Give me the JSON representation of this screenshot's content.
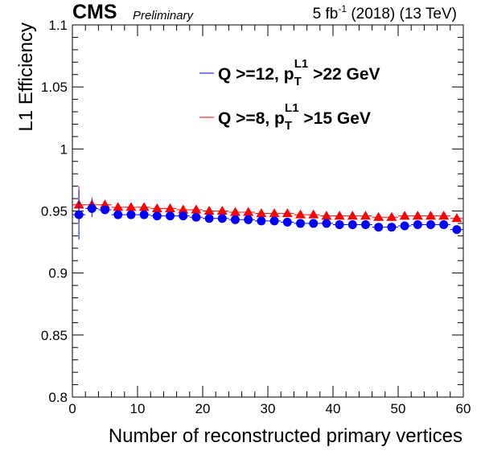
{
  "header": {
    "experiment": "CMS",
    "status": "Preliminary",
    "lumi": "5 fb",
    "lumi_exp": "-1",
    "energy": " (2018) (13 TeV)"
  },
  "chart_data": {
    "type": "scatter",
    "xlabel": "Number of reconstructed primary vertices",
    "ylabel": "L1 Efficiency",
    "xlim": [
      0,
      60
    ],
    "ylim": [
      0.8,
      1.1
    ],
    "xticks": [
      0,
      10,
      20,
      30,
      40,
      50,
      60
    ],
    "yticks": [
      0.8,
      0.85,
      0.9,
      0.95,
      1,
      1.05,
      1.1
    ],
    "ytick_labels": [
      "0.8",
      "0.85",
      "0.9",
      "0.95",
      "1",
      "1.05",
      "1.1"
    ],
    "grid": false,
    "legend_position": "top-right",
    "series": [
      {
        "legend_parts": [
          "Q >=12, p",
          "T",
          "L1",
          " >22 GeV"
        ],
        "color": "#0000ff",
        "marker": "circle",
        "x": [
          1,
          3,
          5,
          7,
          9,
          11,
          13,
          15,
          17,
          19,
          21,
          23,
          25,
          27,
          29,
          31,
          33,
          35,
          37,
          39,
          41,
          43,
          45,
          47,
          49,
          51,
          53,
          55,
          57,
          59
        ],
        "y": [
          0.947,
          0.952,
          0.951,
          0.947,
          0.947,
          0.947,
          0.946,
          0.946,
          0.946,
          0.945,
          0.944,
          0.944,
          0.943,
          0.943,
          0.942,
          0.942,
          0.941,
          0.94,
          0.94,
          0.94,
          0.939,
          0.939,
          0.939,
          0.937,
          0.937,
          0.938,
          0.939,
          0.939,
          0.939,
          0.935
        ],
        "yerr": [
          0.02,
          0.007,
          0.003,
          0.002,
          0.001,
          0.001,
          0.001,
          0.001,
          0.001,
          0.001,
          0.001,
          0.001,
          0.001,
          0.001,
          0.001,
          0.001,
          0.001,
          0.001,
          0.001,
          0.001,
          0.001,
          0.001,
          0.002,
          0.002,
          0.002,
          0.002,
          0.002,
          0.003,
          0.003,
          0.003
        ]
      },
      {
        "legend_parts": [
          "Q >=8, p",
          "T",
          "L1",
          " >15 GeV"
        ],
        "color": "#ff0000",
        "marker": "triangle",
        "x": [
          1,
          3,
          5,
          7,
          9,
          11,
          13,
          15,
          17,
          19,
          21,
          23,
          25,
          27,
          29,
          31,
          33,
          35,
          37,
          39,
          41,
          43,
          45,
          47,
          49,
          51,
          53,
          55,
          57,
          59
        ],
        "y": [
          0.955,
          0.955,
          0.955,
          0.953,
          0.953,
          0.953,
          0.952,
          0.952,
          0.951,
          0.951,
          0.95,
          0.95,
          0.949,
          0.949,
          0.948,
          0.948,
          0.948,
          0.947,
          0.947,
          0.946,
          0.946,
          0.946,
          0.946,
          0.945,
          0.945,
          0.946,
          0.946,
          0.946,
          0.946,
          0.944
        ],
        "yerr": [
          0.015,
          0.006,
          0.003,
          0.002,
          0.001,
          0.001,
          0.001,
          0.001,
          0.001,
          0.001,
          0.001,
          0.001,
          0.001,
          0.001,
          0.001,
          0.001,
          0.001,
          0.001,
          0.001,
          0.001,
          0.001,
          0.001,
          0.002,
          0.002,
          0.002,
          0.002,
          0.002,
          0.002,
          0.003,
          0.003
        ]
      }
    ]
  }
}
